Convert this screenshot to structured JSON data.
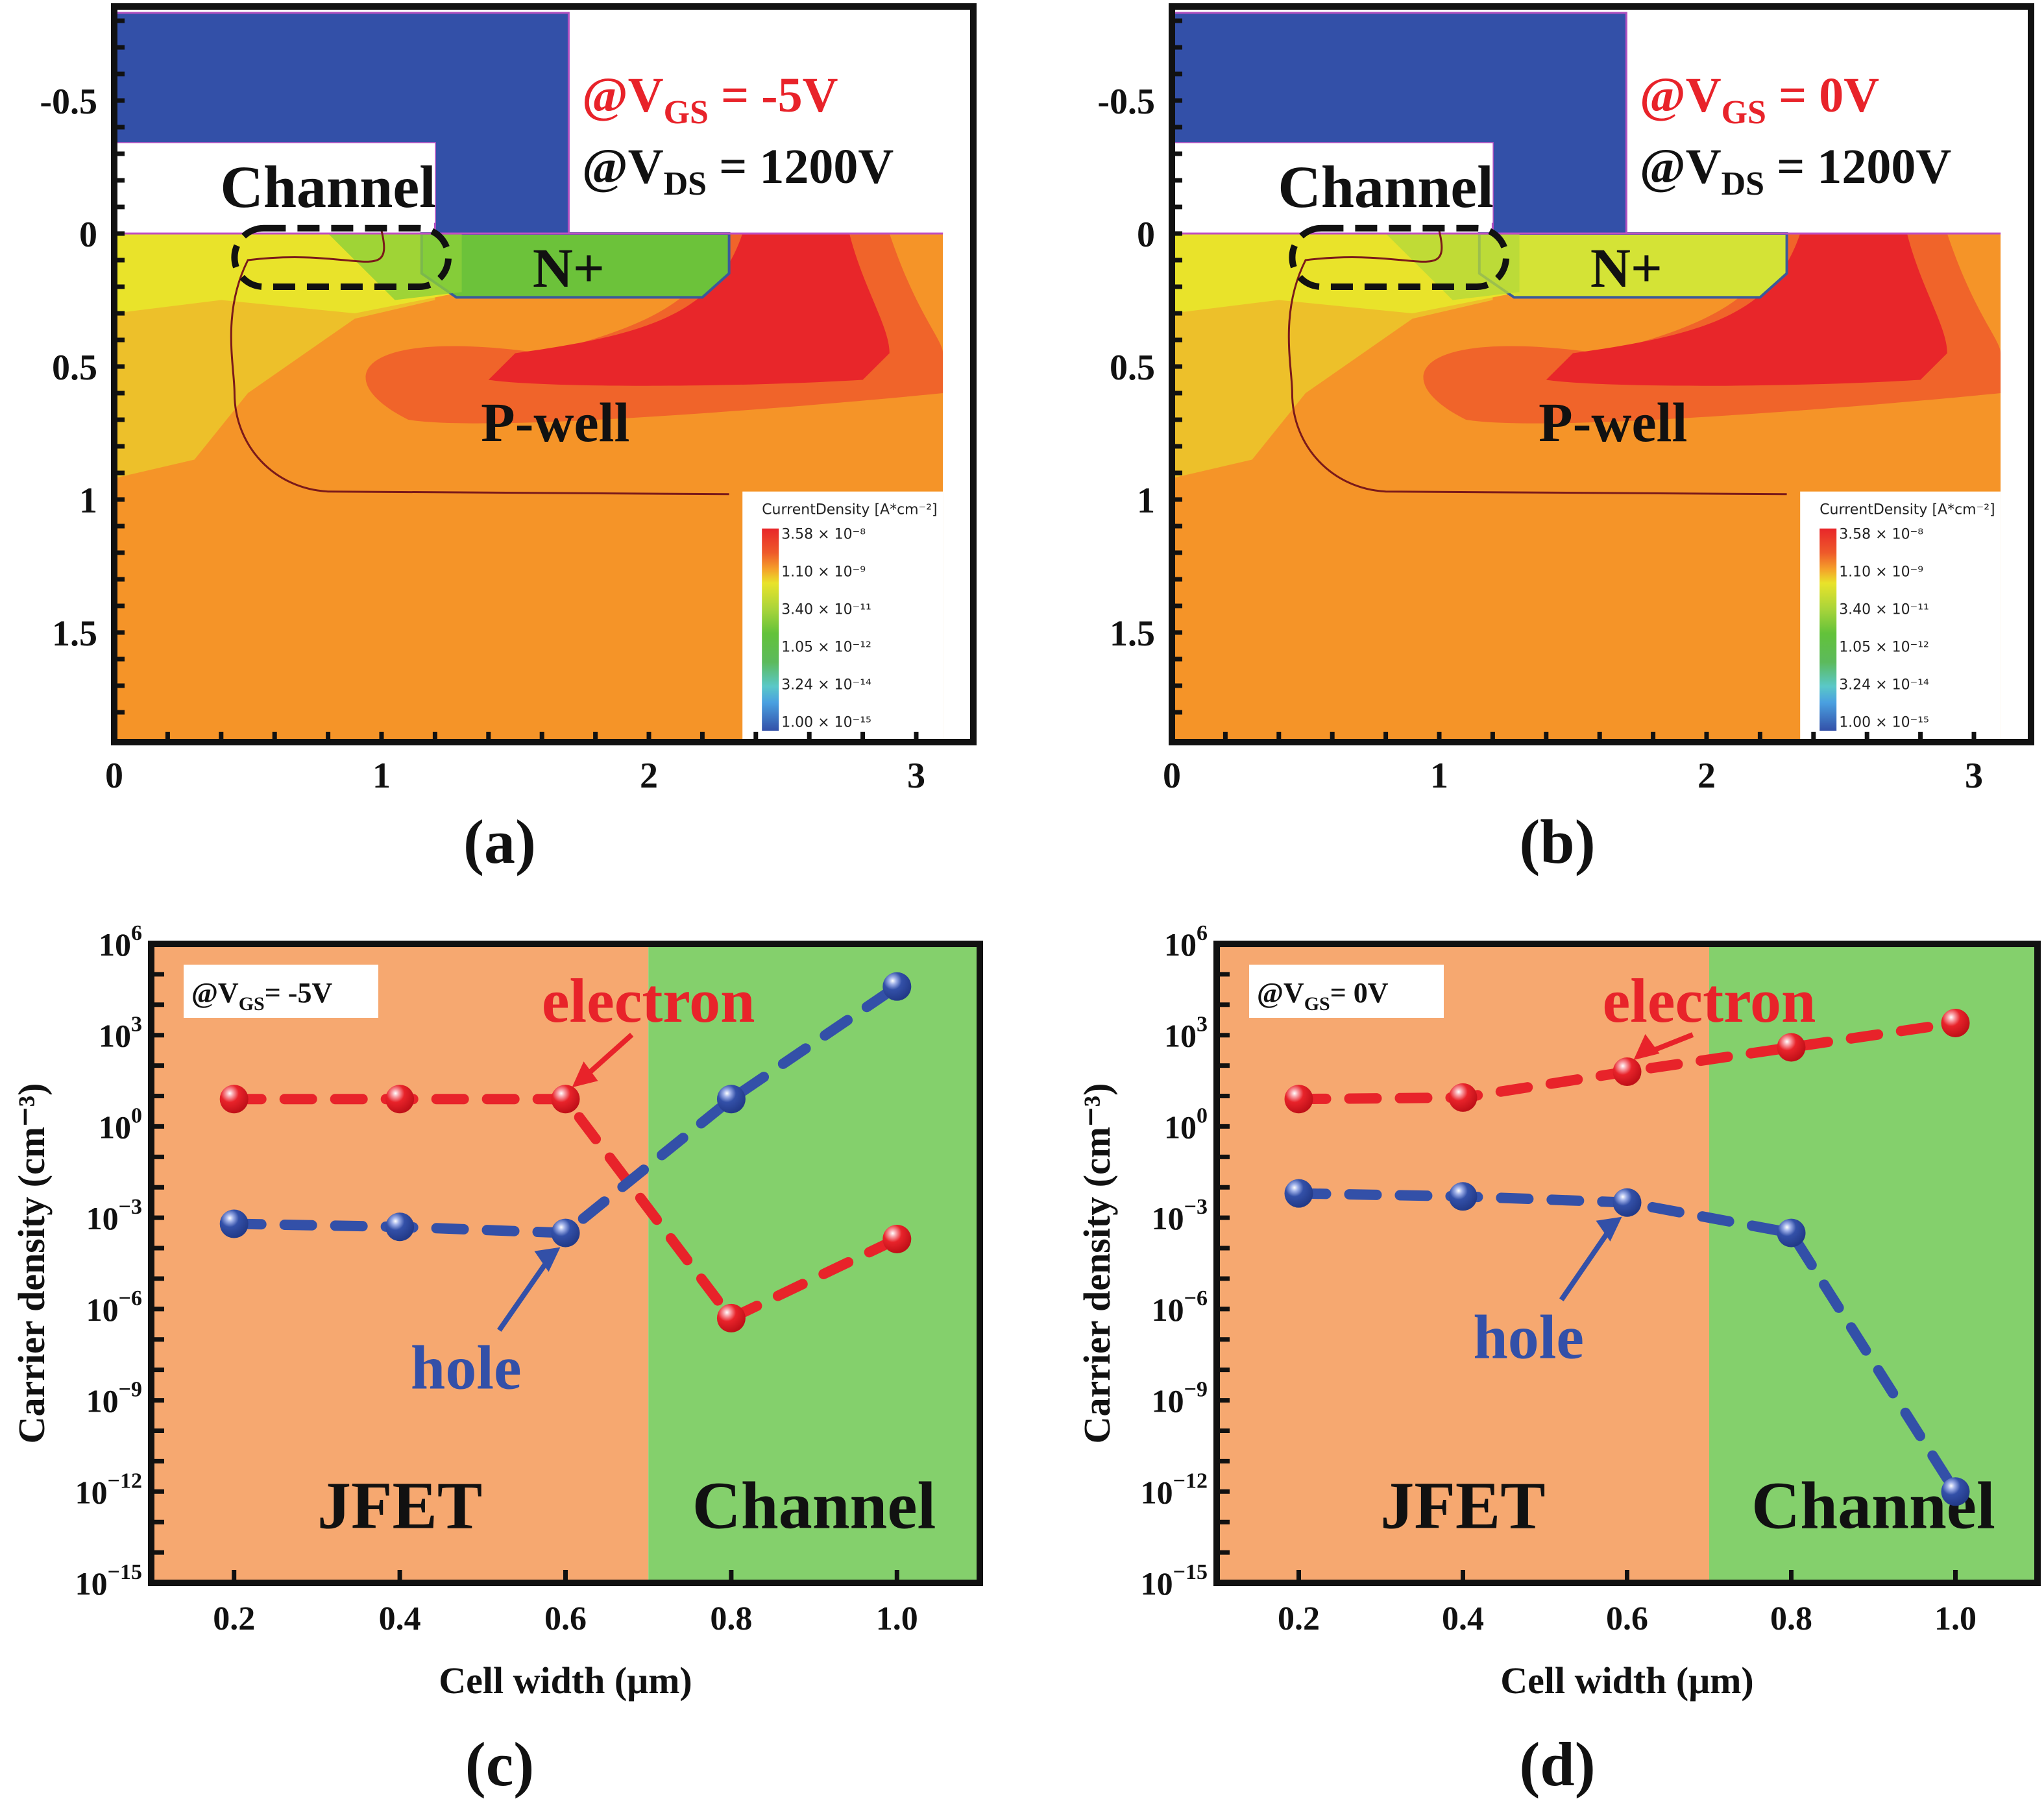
{
  "figure": {
    "panels": [
      {
        "id": "a",
        "label": "(a)"
      },
      {
        "id": "b",
        "label": "(b)"
      },
      {
        "id": "c",
        "label": "(c)"
      },
      {
        "id": "d",
        "label": "(d)"
      }
    ]
  },
  "chart_data": [
    {
      "panel": "a",
      "type": "heatmap",
      "title": "",
      "annotations": {
        "vgs": {
          "prefix": "@V",
          "sub": "GS",
          "value": " = -5V",
          "color": "#e8232a"
        },
        "vds": {
          "prefix": "@V",
          "sub": "DS",
          "value": " = 1200V",
          "color": "#111111"
        },
        "regions": [
          "Channel",
          "N+",
          "P-well"
        ]
      },
      "x_ticks": [
        "0",
        "1",
        "2",
        "3"
      ],
      "y_ticks": [
        "-0.5",
        "0",
        "0.5",
        "1",
        "1.5"
      ],
      "xlim": [
        0,
        3.2
      ],
      "ylim": [
        -0.85,
        1.91
      ],
      "colorbar": {
        "title": "CurrentDensity [A*cm⁻²]",
        "labels": [
          "3.58 × 10⁻⁸",
          "1.10 × 10⁻⁹",
          "3.40 × 10⁻¹¹",
          "1.05 × 10⁻¹²",
          "3.24 × 10⁻¹⁴",
          "1.00 × 10⁻¹⁵"
        ],
        "colors": [
          "#e8262a",
          "#f0782a",
          "#e9e32a",
          "#6cc43a",
          "#5ac8c8",
          "#3350a8"
        ]
      },
      "n_region_color": "#6cc23a"
    },
    {
      "panel": "b",
      "type": "heatmap",
      "title": "",
      "annotations": {
        "vgs": {
          "prefix": "@V",
          "sub": "GS",
          "value": " = 0V",
          "color": "#e8232a"
        },
        "vds": {
          "prefix": "@V",
          "sub": "DS",
          "value": " = 1200V",
          "color": "#111111"
        },
        "regions": [
          "Channel",
          "N+",
          "P-well"
        ]
      },
      "x_ticks": [
        "0",
        "1",
        "2",
        "3"
      ],
      "y_ticks": [
        "-0.5",
        "0",
        "0.5",
        "1",
        "1.5"
      ],
      "xlim": [
        0,
        3.2
      ],
      "ylim": [
        -0.85,
        1.91
      ],
      "colorbar": {
        "title": "CurrentDensity [A*cm⁻²]",
        "labels": [
          "3.58 × 10⁻⁸",
          "1.10 × 10⁻⁹",
          "3.40 × 10⁻¹¹",
          "1.05 × 10⁻¹²",
          "3.24 × 10⁻¹⁴",
          "1.00 × 10⁻¹⁵"
        ],
        "colors": [
          "#e8262a",
          "#f0782a",
          "#e9e32a",
          "#6cc43a",
          "#5ac8c8",
          "#3350a8"
        ]
      },
      "n_region_color": "#d4e336"
    },
    {
      "panel": "c",
      "type": "line",
      "xlabel": "Cell width (μm)",
      "ylabel": "Carrier density (cm⁻³)",
      "annotation": {
        "prefix": "@V",
        "sub": "GS",
        "value": "= -5V"
      },
      "xlim": [
        0.1,
        1.1
      ],
      "ylim_log10": [
        -15,
        6
      ],
      "x_ticks": [
        "0.2",
        "0.4",
        "0.6",
        "0.8",
        "1.0"
      ],
      "y_tick_exponents": [
        "6",
        "3",
        "0",
        "−3",
        "−6",
        "−9",
        "−12",
        "−15"
      ],
      "regions": [
        {
          "name": "JFET",
          "from": 0.1,
          "to": 0.7,
          "color": "#f6a870"
        },
        {
          "name": "Channel",
          "from": 0.7,
          "to": 1.1,
          "color": "#84d06c"
        }
      ],
      "x": [
        0.2,
        0.4,
        0.6,
        0.8,
        1.0
      ],
      "series": [
        {
          "name": "electron",
          "color": "#e8232a",
          "log10_values": [
            0.9,
            0.9,
            0.9,
            -6.3,
            -3.7
          ]
        },
        {
          "name": "hole",
          "color": "#3350a8",
          "log10_values": [
            -3.2,
            -3.3,
            -3.5,
            0.9,
            4.6
          ]
        }
      ],
      "series_labels": [
        "electron",
        "hole"
      ]
    },
    {
      "panel": "d",
      "type": "line",
      "xlabel": "Cell width (μm)",
      "ylabel": "Carrier density (cm⁻³)",
      "annotation": {
        "prefix": "@V",
        "sub": "GS",
        "value": "= 0V"
      },
      "xlim": [
        0.1,
        1.1
      ],
      "ylim_log10": [
        -15,
        6
      ],
      "x_ticks": [
        "0.2",
        "0.4",
        "0.6",
        "0.8",
        "1.0"
      ],
      "y_tick_exponents": [
        "6",
        "3",
        "0",
        "−3",
        "−6",
        "−9",
        "−12",
        "−15"
      ],
      "regions": [
        {
          "name": "JFET",
          "from": 0.1,
          "to": 0.7,
          "color": "#f6a870"
        },
        {
          "name": "Channel",
          "from": 0.7,
          "to": 1.1,
          "color": "#84d06c"
        }
      ],
      "x": [
        0.2,
        0.4,
        0.6,
        0.8,
        1.0
      ],
      "series": [
        {
          "name": "electron",
          "color": "#e8232a",
          "log10_values": [
            0.9,
            0.95,
            1.8,
            2.6,
            3.4
          ]
        },
        {
          "name": "hole",
          "color": "#3350a8",
          "log10_values": [
            -2.2,
            -2.3,
            -2.5,
            -3.5,
            -12.0
          ]
        }
      ],
      "series_labels": [
        "electron",
        "hole"
      ]
    }
  ]
}
